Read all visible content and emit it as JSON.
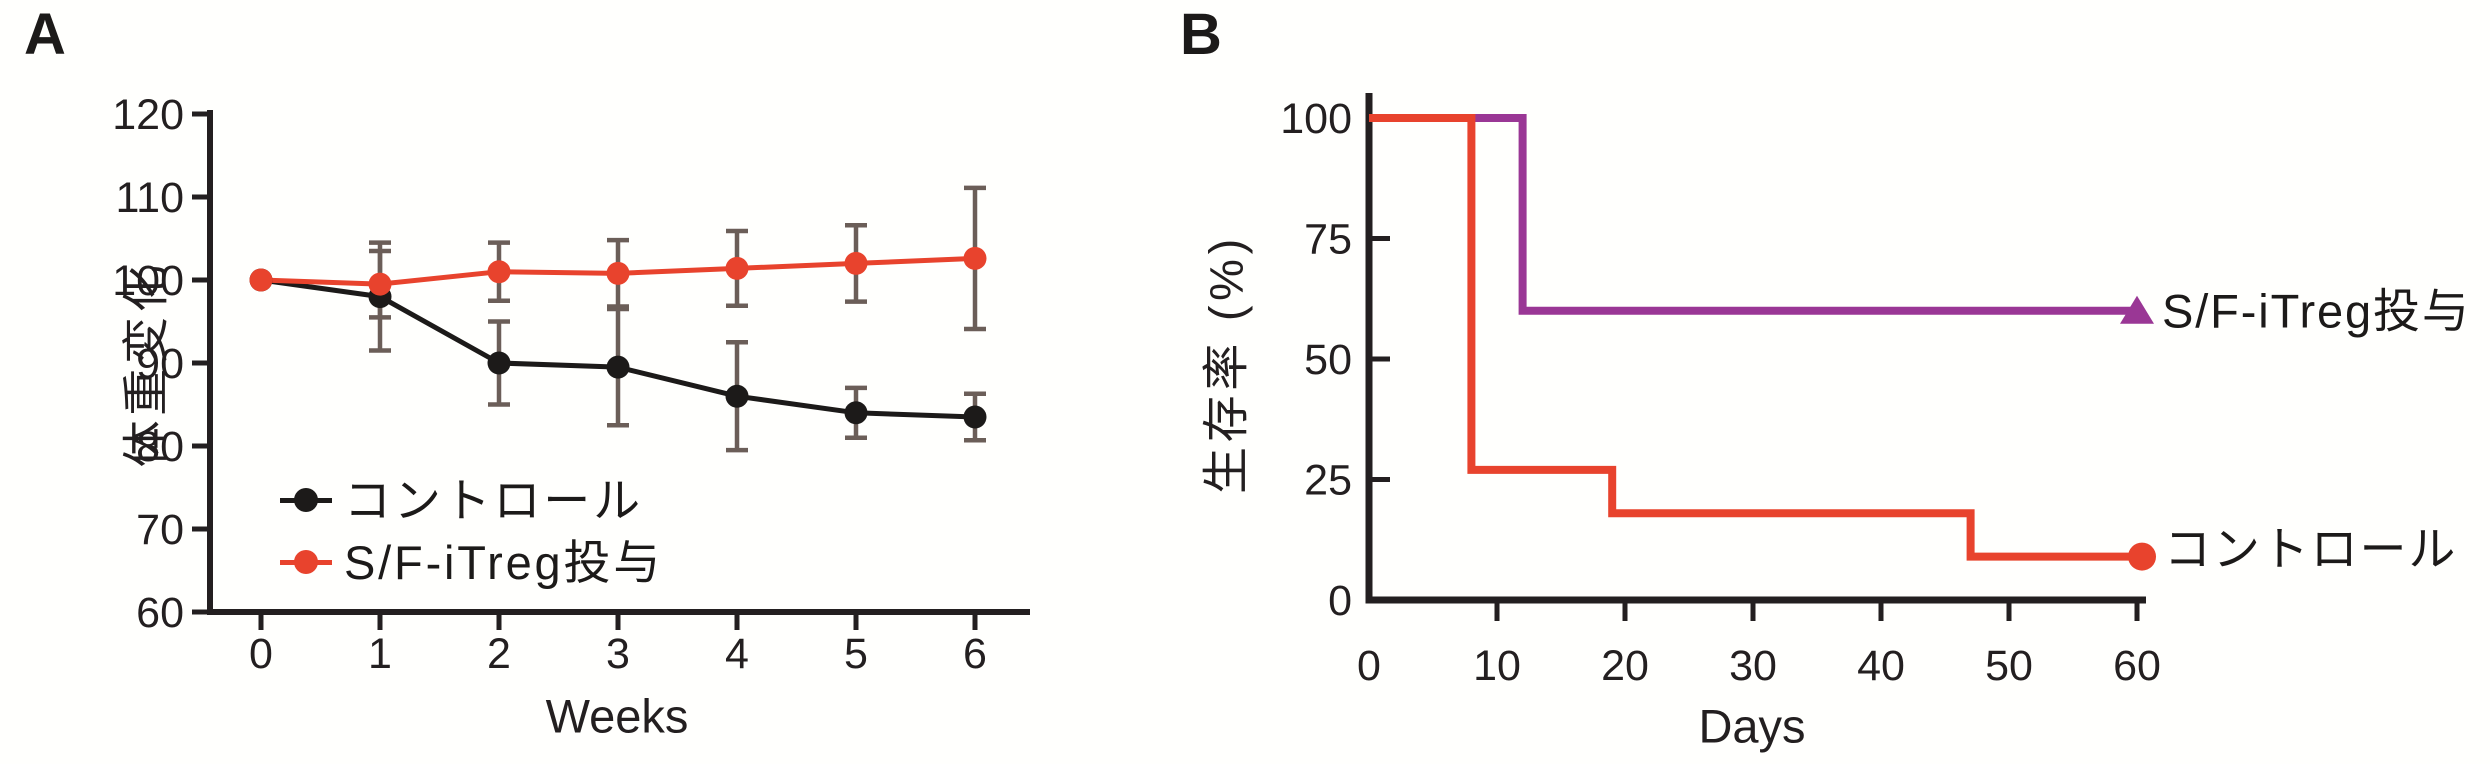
{
  "panelA": {
    "label": "A",
    "y_axis_label": "体重変化",
    "x_axis_label": "Weeks"
  },
  "panelB": {
    "label": "B",
    "y_axis_label": "生存率 (%)",
    "x_axis_label": "Days"
  },
  "colors": {
    "black_series": "#1c1a19",
    "red_series": "#e8432d",
    "purple_series": "#9a3795",
    "error_bar": "#6b5e58",
    "axis": "#231f20"
  },
  "chart_data": [
    {
      "type": "line",
      "title": "",
      "xlabel": "Weeks",
      "ylabel": "体重変化",
      "x": [
        0,
        1,
        2,
        3,
        4,
        5,
        6
      ],
      "xticks": [
        0,
        1,
        2,
        3,
        4,
        5,
        6
      ],
      "yticks": [
        60,
        70,
        80,
        90,
        100,
        110,
        120
      ],
      "xlim": [
        0,
        6
      ],
      "ylim": [
        60,
        120
      ],
      "grid": false,
      "legend_position": "inside-bottom-left",
      "series": [
        {
          "name": "コントロール",
          "color": "#1c1a19",
          "marker": "circle",
          "values": [
            100,
            98,
            90,
            89.5,
            86,
            84,
            83.5
          ],
          "errors": [
            null,
            6.5,
            5,
            7,
            6.5,
            3,
            2.8
          ]
        },
        {
          "name": "S/F-iTreg投与",
          "color": "#e8432d",
          "marker": "circle",
          "values": [
            100,
            99.5,
            101,
            100.8,
            101.4,
            102,
            102.6
          ],
          "errors": [
            null,
            4,
            3.5,
            4,
            4.5,
            4.6,
            8.5
          ]
        }
      ]
    },
    {
      "type": "line",
      "subtype": "kaplan-meier-step",
      "title": "",
      "xlabel": "Days",
      "ylabel": "生存率 (%)",
      "xticks": [
        0,
        10,
        20,
        30,
        40,
        50,
        60
      ],
      "yticks": [
        0,
        25,
        50,
        75,
        100
      ],
      "xlim": [
        0,
        60
      ],
      "ylim": [
        0,
        100
      ],
      "grid": false,
      "legend_position": "right-of-line-end",
      "series": [
        {
          "name": "S/F-iTreg投与",
          "color": "#9a3795",
          "marker": "triangle",
          "points": [
            [
              0,
              100
            ],
            [
              12,
              100
            ],
            [
              12,
              60
            ],
            [
              60,
              60
            ]
          ]
        },
        {
          "name": "コントロール",
          "color": "#e8432d",
          "marker": "circle",
          "points": [
            [
              0,
              100
            ],
            [
              8,
              100
            ],
            [
              8,
              27
            ],
            [
              19,
              27
            ],
            [
              19,
              18
            ],
            [
              47,
              18
            ],
            [
              47,
              9
            ],
            [
              60,
              9
            ]
          ]
        }
      ]
    }
  ]
}
